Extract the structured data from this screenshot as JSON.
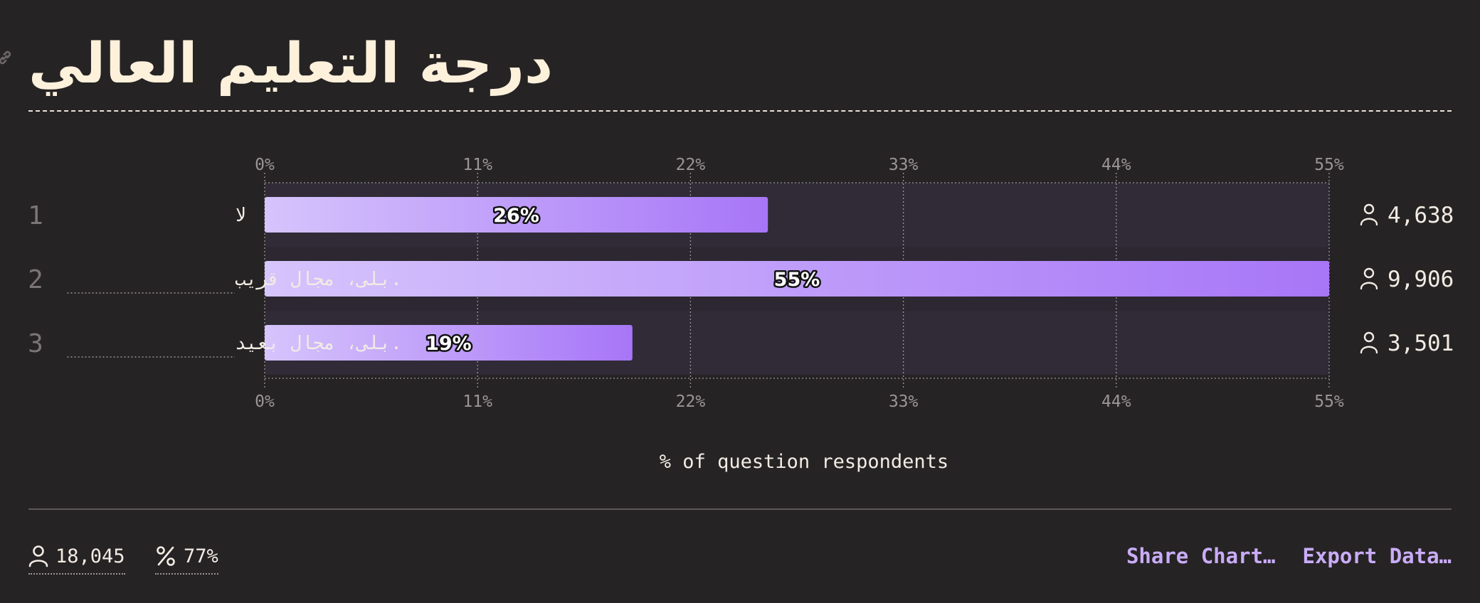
{
  "title": "درجة التعليم العالي",
  "chart_data": {
    "type": "bar",
    "orientation": "horizontal",
    "title": "درجة التعليم العالي",
    "xlabel": "% of question respondents",
    "ylabel": "",
    "xlim": [
      0,
      55
    ],
    "x_ticks": [
      "0%",
      "11%",
      "22%",
      "33%",
      "44%",
      "55%"
    ],
    "grid": true,
    "rows": [
      {
        "rank": "1",
        "category": "لا",
        "value": 26,
        "label": "26%",
        "count": "4,638"
      },
      {
        "rank": "2",
        "category": ".بلى، مجال قريب",
        "value": 55,
        "label": "55%",
        "count": "9,906"
      },
      {
        "rank": "3",
        "category": ".بلى، مجال بعيد",
        "value": 19,
        "label": "19%",
        "count": "3,501"
      }
    ],
    "bar_gradient": [
      "#d6c4fc",
      "#a776f7"
    ]
  },
  "footer": {
    "total_respondents": "18,045",
    "response_rate": "77%",
    "share_label": "Share Chart…",
    "export_label": "Export Data…"
  },
  "icons": {
    "title_link": "link-icon",
    "respondent": "person-icon",
    "percent": "percent-icon"
  },
  "colors": {
    "background": "#262324",
    "title": "#fdf1dc",
    "accent": "#c9acf8"
  }
}
